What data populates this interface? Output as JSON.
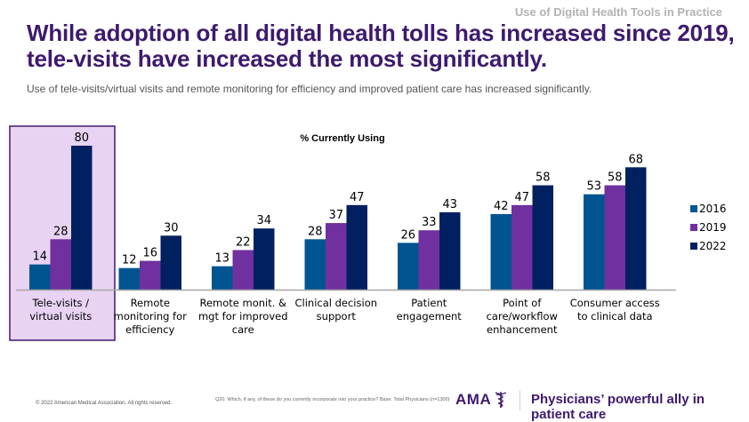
{
  "header": {
    "section_label": "Use of Digital Health Tools in Practice",
    "title": "While adoption of all digital health tolls has increased since 2019, tele-visits have increased the most significantly.",
    "subtitle": "Use of tele-visits/virtual visits and remote monitoring for efficiency and improved patient care has increased significantly."
  },
  "chart_data": {
    "type": "bar",
    "title": "% Currently Using",
    "xlabel": "",
    "ylabel": "",
    "ylim": [
      0,
      85
    ],
    "grid": false,
    "legend_position": "right",
    "highlighted_category_index": 0,
    "categories": [
      [
        "Tele-visits /",
        "virtual visits"
      ],
      [
        "Remote",
        "monitoring for",
        "efficiency"
      ],
      [
        "Remote monit. &",
        "mgt for improved",
        "care"
      ],
      [
        "Clinical decision",
        "support"
      ],
      [
        "Patient",
        "engagement"
      ],
      [
        "Point of",
        "care/workflow",
        "enhancement"
      ],
      [
        "Consumer access",
        "to clinical data"
      ]
    ],
    "series": [
      {
        "name": "2016",
        "color": "#005590",
        "values": [
          14,
          12,
          13,
          28,
          26,
          42,
          53
        ]
      },
      {
        "name": "2019",
        "color": "#7030a0",
        "values": [
          28,
          16,
          22,
          37,
          33,
          47,
          58
        ]
      },
      {
        "name": "2022",
        "color": "#002060",
        "values": [
          80,
          30,
          34,
          47,
          43,
          58,
          68
        ]
      }
    ],
    "colors": {
      "highlight_fill": "#e8d3f3",
      "highlight_border": "#3d1a6e",
      "axis": "#a6a6a6",
      "text": "#000000"
    }
  },
  "footer": {
    "copyright": "© 2022 American Medical Association. All rights reserved.",
    "question": "Q20. Which, if any, of these do you currently incorporate into your practice? Base: Total Physicians (n=1300)",
    "logo_text": "AMA",
    "tagline": "Physicians’ powerful ally in patient care"
  }
}
